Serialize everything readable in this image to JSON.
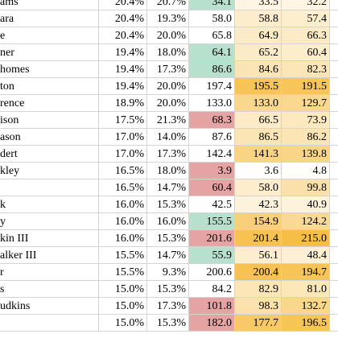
{
  "table": {
    "rows": [
      [
        "ams",
        "20.4%",
        "20.7%",
        "34.1",
        "33.5",
        "32.2"
      ],
      [
        "ara",
        "20.4%",
        "19.3%",
        "58.0",
        "58.8",
        "57.4"
      ],
      [
        "e",
        "20.4%",
        "20.0%",
        "65.8",
        "64.9",
        "66.3"
      ],
      [
        "ner",
        "19.4%",
        "18.0%",
        "64.1",
        "65.2",
        "60.4"
      ],
      [
        "homes",
        "19.4%",
        "17.3%",
        "86.6",
        "84.6",
        "82.3"
      ],
      [
        "ton",
        "19.4%",
        "20.0%",
        "197.4",
        "195.5",
        "191.5"
      ],
      [
        "rence",
        "18.9%",
        "20.0%",
        "133.0",
        "133.0",
        "129.7"
      ],
      [
        "ison",
        "17.5%",
        "21.3%",
        "68.3",
        "66.5",
        "73.9"
      ],
      [
        "ason",
        "17.0%",
        "14.0%",
        "87.6",
        "86.5",
        "86.2"
      ],
      [
        "dert",
        "17.0%",
        "17.3%",
        "142.4",
        "141.3",
        "139.8"
      ],
      [
        "kley",
        "16.5%",
        "18.0%",
        "3.9",
        "3.6",
        "4.8"
      ],
      [
        null,
        "16.5%",
        "14.7%",
        "60.4",
        "58.0",
        "99.8"
      ],
      [
        "k",
        "16.0%",
        "15.3%",
        "42.5",
        "42.3",
        "40.9"
      ],
      [
        "y",
        "16.0%",
        "16.0%",
        "155.5",
        "154.9",
        "124.2"
      ],
      [
        "kin III",
        "16.0%",
        "15.3%",
        "201.6",
        "201.4",
        "215.0"
      ],
      [
        "alker III",
        "15.5%",
        "14.7%",
        "55.9",
        "56.1",
        "48.4"
      ],
      [
        "r",
        "15.5%",
        "9.3%",
        "200.6",
        "200.4",
        "194.7"
      ],
      [
        "s",
        "15.0%",
        "15.3%",
        "84.2",
        "82.9",
        "81.0"
      ],
      [
        "udkins",
        "15.0%",
        "17.3%",
        "101.8",
        "98.3",
        "132.7"
      ],
      [
        null,
        "15.0%",
        "15.3%",
        "182.0",
        "177.7",
        "196.5"
      ]
    ],
    "highlight": [
      "#b7e1cd",
      null,
      null,
      "#b7e1cd",
      "#b7e1cd",
      null,
      null,
      "#e6a3a3",
      null,
      null,
      "#e6a3a3",
      "#e6a3a3",
      null,
      "#b7e1cd",
      "#e6a3a3",
      "#b7e1cd",
      null,
      null,
      "#e6a3a3",
      "#e6a3a3"
    ]
  }
}
